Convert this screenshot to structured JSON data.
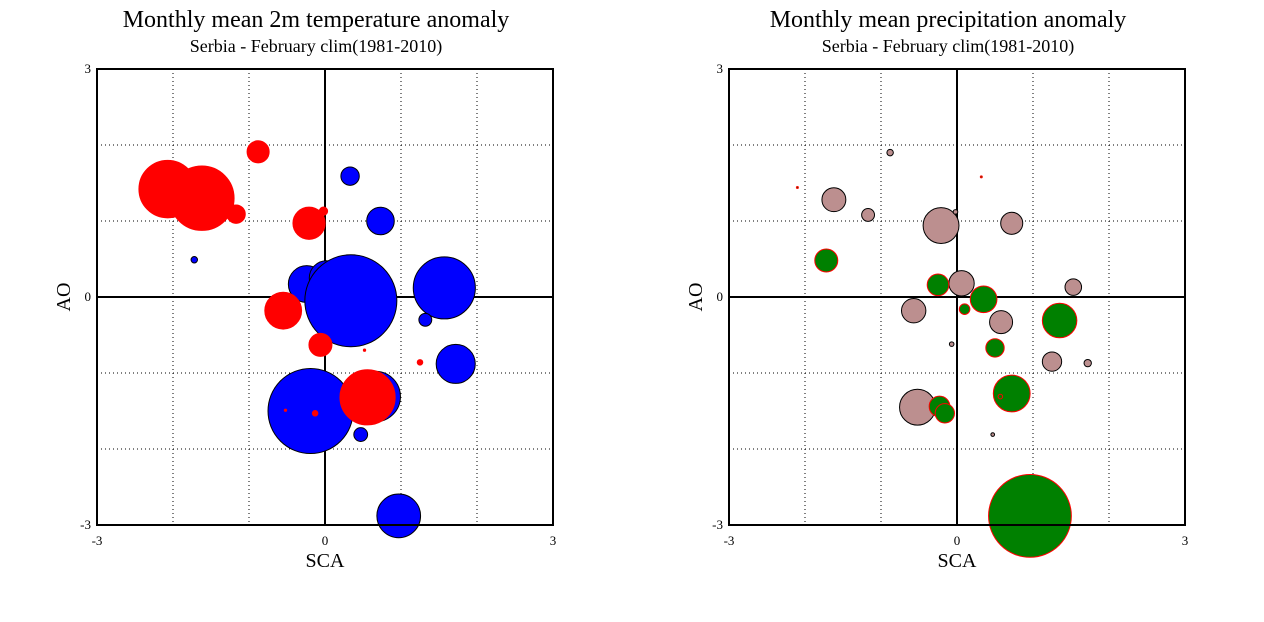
{
  "chart_data": [
    {
      "type": "scatter",
      "title": "Monthly mean 2m temperature anomaly",
      "subtitle": "Serbia - February  clim(1981-2010)",
      "xlabel": "SCA",
      "ylabel": "AO",
      "xlim": [
        -3,
        3
      ],
      "ylim": [
        -3,
        3
      ],
      "x_ticks": [
        "-3",
        "0",
        "3"
      ],
      "y_ticks": [
        "3",
        "0",
        "-3"
      ],
      "grid": true,
      "gridlines": [
        -2,
        -1,
        1,
        2
      ],
      "size_meaning": "marker radius proportional to anomaly magnitude",
      "colors": {
        "positive": "#ff0000",
        "negative": "#0000ff",
        "edge": "#000000"
      },
      "points": [
        {
          "x": -2.07,
          "y": 1.42,
          "size": 1.25,
          "sign": "positive"
        },
        {
          "x": -1.62,
          "y": 1.3,
          "size": 1.4,
          "sign": "positive"
        },
        {
          "x": -0.88,
          "y": 1.91,
          "size": 0.48,
          "sign": "positive"
        },
        {
          "x": -1.17,
          "y": 1.09,
          "size": 0.4,
          "sign": "positive"
        },
        {
          "x": -0.21,
          "y": 0.97,
          "size": 0.7,
          "sign": "positive"
        },
        {
          "x": -0.02,
          "y": 1.13,
          "size": 0.18,
          "sign": "positive"
        },
        {
          "x": 0.33,
          "y": 1.59,
          "size": 0.4,
          "sign": "negative"
        },
        {
          "x": 0.73,
          "y": 1.0,
          "size": 0.6,
          "sign": "negative"
        },
        {
          "x": -1.72,
          "y": 0.49,
          "size": 0.14,
          "sign": "negative"
        },
        {
          "x": -0.24,
          "y": 0.17,
          "size": 0.8,
          "sign": "negative"
        },
        {
          "x": 0.02,
          "y": 0.25,
          "size": 0.75,
          "sign": "negative"
        },
        {
          "x": 0.34,
          "y": -0.05,
          "size": 2.0,
          "sign": "negative"
        },
        {
          "x": 1.57,
          "y": 0.12,
          "size": 1.35,
          "sign": "negative"
        },
        {
          "x": -0.55,
          "y": -0.18,
          "size": 0.8,
          "sign": "positive"
        },
        {
          "x": 1.32,
          "y": -0.3,
          "size": 0.28,
          "sign": "negative"
        },
        {
          "x": -0.06,
          "y": -0.63,
          "size": 0.5,
          "sign": "positive"
        },
        {
          "x": 0.52,
          "y": -0.7,
          "size": 0.05,
          "sign": "positive"
        },
        {
          "x": 1.25,
          "y": -0.86,
          "size": 0.12,
          "sign": "positive"
        },
        {
          "x": 1.72,
          "y": -0.88,
          "size": 0.85,
          "sign": "negative"
        },
        {
          "x": -0.19,
          "y": -1.5,
          "size": 1.85,
          "sign": "negative"
        },
        {
          "x": 0.66,
          "y": -1.31,
          "size": 1.1,
          "sign": "negative"
        },
        {
          "x": 0.56,
          "y": -1.32,
          "size": 1.2,
          "sign": "positive"
        },
        {
          "x": -0.13,
          "y": -1.53,
          "size": 0.12,
          "sign": "positive"
        },
        {
          "x": -0.52,
          "y": -1.49,
          "size": 0.05,
          "sign": "positive"
        },
        {
          "x": 0.47,
          "y": -1.81,
          "size": 0.3,
          "sign": "negative"
        },
        {
          "x": 0.97,
          "y": -2.88,
          "size": 0.95,
          "sign": "negative"
        }
      ]
    },
    {
      "type": "scatter",
      "title": "Monthly mean precipitation anomaly",
      "subtitle": "Serbia - February  clim(1981-2010)",
      "xlabel": "SCA",
      "ylabel": "AO",
      "xlim": [
        -3,
        3
      ],
      "ylim": [
        -3,
        3
      ],
      "x_ticks": [
        "-3",
        "0",
        "3"
      ],
      "y_ticks": [
        "3",
        "0",
        "-3"
      ],
      "grid": true,
      "gridlines": [
        -2,
        -1,
        1,
        2
      ],
      "size_meaning": "marker radius proportional to anomaly magnitude",
      "colors": {
        "positive": "#008000",
        "negative": "#bc8f8f",
        "edge_positive": "#ff0000",
        "edge_negative": "#000000"
      },
      "points": [
        {
          "x": -2.1,
          "y": 1.44,
          "size": 0.04,
          "sign": "positive"
        },
        {
          "x": -0.88,
          "y": 1.9,
          "size": 0.14,
          "sign": "negative"
        },
        {
          "x": 0.32,
          "y": 1.58,
          "size": 0.04,
          "sign": "positive"
        },
        {
          "x": -1.62,
          "y": 1.28,
          "size": 0.52,
          "sign": "negative"
        },
        {
          "x": -1.17,
          "y": 1.08,
          "size": 0.28,
          "sign": "negative"
        },
        {
          "x": -0.21,
          "y": 0.94,
          "size": 0.78,
          "sign": "negative"
        },
        {
          "x": -0.02,
          "y": 1.12,
          "size": 0.1,
          "sign": "negative"
        },
        {
          "x": 0.72,
          "y": 0.97,
          "size": 0.48,
          "sign": "negative"
        },
        {
          "x": -1.72,
          "y": 0.48,
          "size": 0.5,
          "sign": "positive"
        },
        {
          "x": 0.06,
          "y": 0.18,
          "size": 0.55,
          "sign": "negative"
        },
        {
          "x": -0.25,
          "y": 0.16,
          "size": 0.47,
          "sign": "positive"
        },
        {
          "x": 0.35,
          "y": -0.03,
          "size": 0.58,
          "sign": "positive"
        },
        {
          "x": 1.53,
          "y": 0.13,
          "size": 0.36,
          "sign": "negative"
        },
        {
          "x": -0.57,
          "y": -0.18,
          "size": 0.53,
          "sign": "negative"
        },
        {
          "x": 0.1,
          "y": -0.16,
          "size": 0.23,
          "sign": "positive"
        },
        {
          "x": 0.58,
          "y": -0.33,
          "size": 0.5,
          "sign": "negative"
        },
        {
          "x": 1.35,
          "y": -0.31,
          "size": 0.75,
          "sign": "positive"
        },
        {
          "x": -0.07,
          "y": -0.62,
          "size": 0.1,
          "sign": "negative"
        },
        {
          "x": 0.5,
          "y": -0.67,
          "size": 0.4,
          "sign": "positive"
        },
        {
          "x": 1.25,
          "y": -0.85,
          "size": 0.42,
          "sign": "negative"
        },
        {
          "x": 1.72,
          "y": -0.87,
          "size": 0.16,
          "sign": "negative"
        },
        {
          "x": 0.72,
          "y": -1.27,
          "size": 0.8,
          "sign": "positive"
        },
        {
          "x": 0.57,
          "y": -1.31,
          "size": 0.1,
          "sign": "positive"
        },
        {
          "x": -0.52,
          "y": -1.45,
          "size": 0.78,
          "sign": "negative"
        },
        {
          "x": -0.23,
          "y": -1.44,
          "size": 0.45,
          "sign": "positive"
        },
        {
          "x": -0.16,
          "y": -1.53,
          "size": 0.42,
          "sign": "positive"
        },
        {
          "x": 0.47,
          "y": -1.81,
          "size": 0.08,
          "sign": "negative"
        },
        {
          "x": 0.96,
          "y": -2.88,
          "size": 1.8,
          "sign": "positive"
        }
      ]
    }
  ]
}
